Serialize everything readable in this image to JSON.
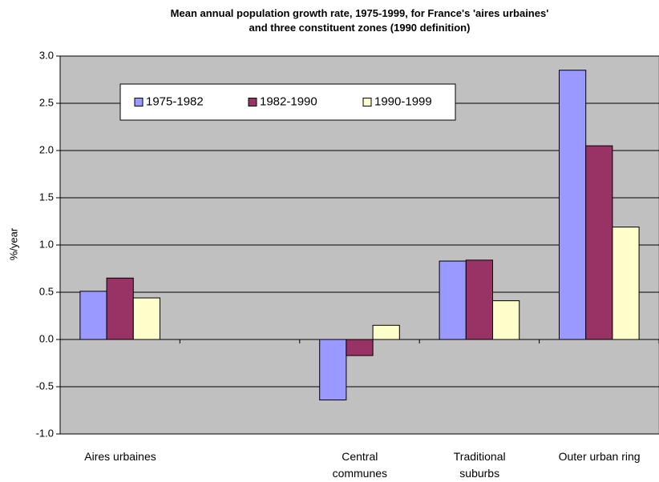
{
  "chart_data": {
    "type": "bar",
    "title": "Mean annual population growth rate, 1975-1999, for France's 'aires urbaines'\nand three constituent zones (1990 definition)",
    "y_label": "%/year",
    "categories": [
      "Aires urbaines",
      null,
      "Central\ncommunes",
      "Traditional\nsuburbs",
      "Outer urban ring"
    ],
    "series": [
      {
        "name": "1975-1982",
        "color": "#9999ff",
        "values": [
          0.51,
          null,
          -0.64,
          0.83,
          2.85
        ]
      },
      {
        "name": "1982-1990",
        "color": "#993366",
        "values": [
          0.65,
          null,
          -0.17,
          0.84,
          2.05
        ]
      },
      {
        "name": "1990-1999",
        "color": "#ffffcc",
        "values": [
          0.44,
          null,
          0.15,
          0.41,
          1.19
        ]
      }
    ],
    "ylim": [
      -1,
      3
    ],
    "yticks": [
      {
        "value": -1,
        "label": "-1.0"
      },
      -0.5,
      {
        "value": 0,
        "label": "0.0"
      },
      0.5,
      {
        "value": 1,
        "label": "1.0"
      },
      1.5,
      {
        "value": 2,
        "label": "2.0"
      },
      2.5,
      {
        "value": 3,
        "label": "3.0"
      }
    ],
    "grid": true,
    "background": "#c0c0c0"
  }
}
